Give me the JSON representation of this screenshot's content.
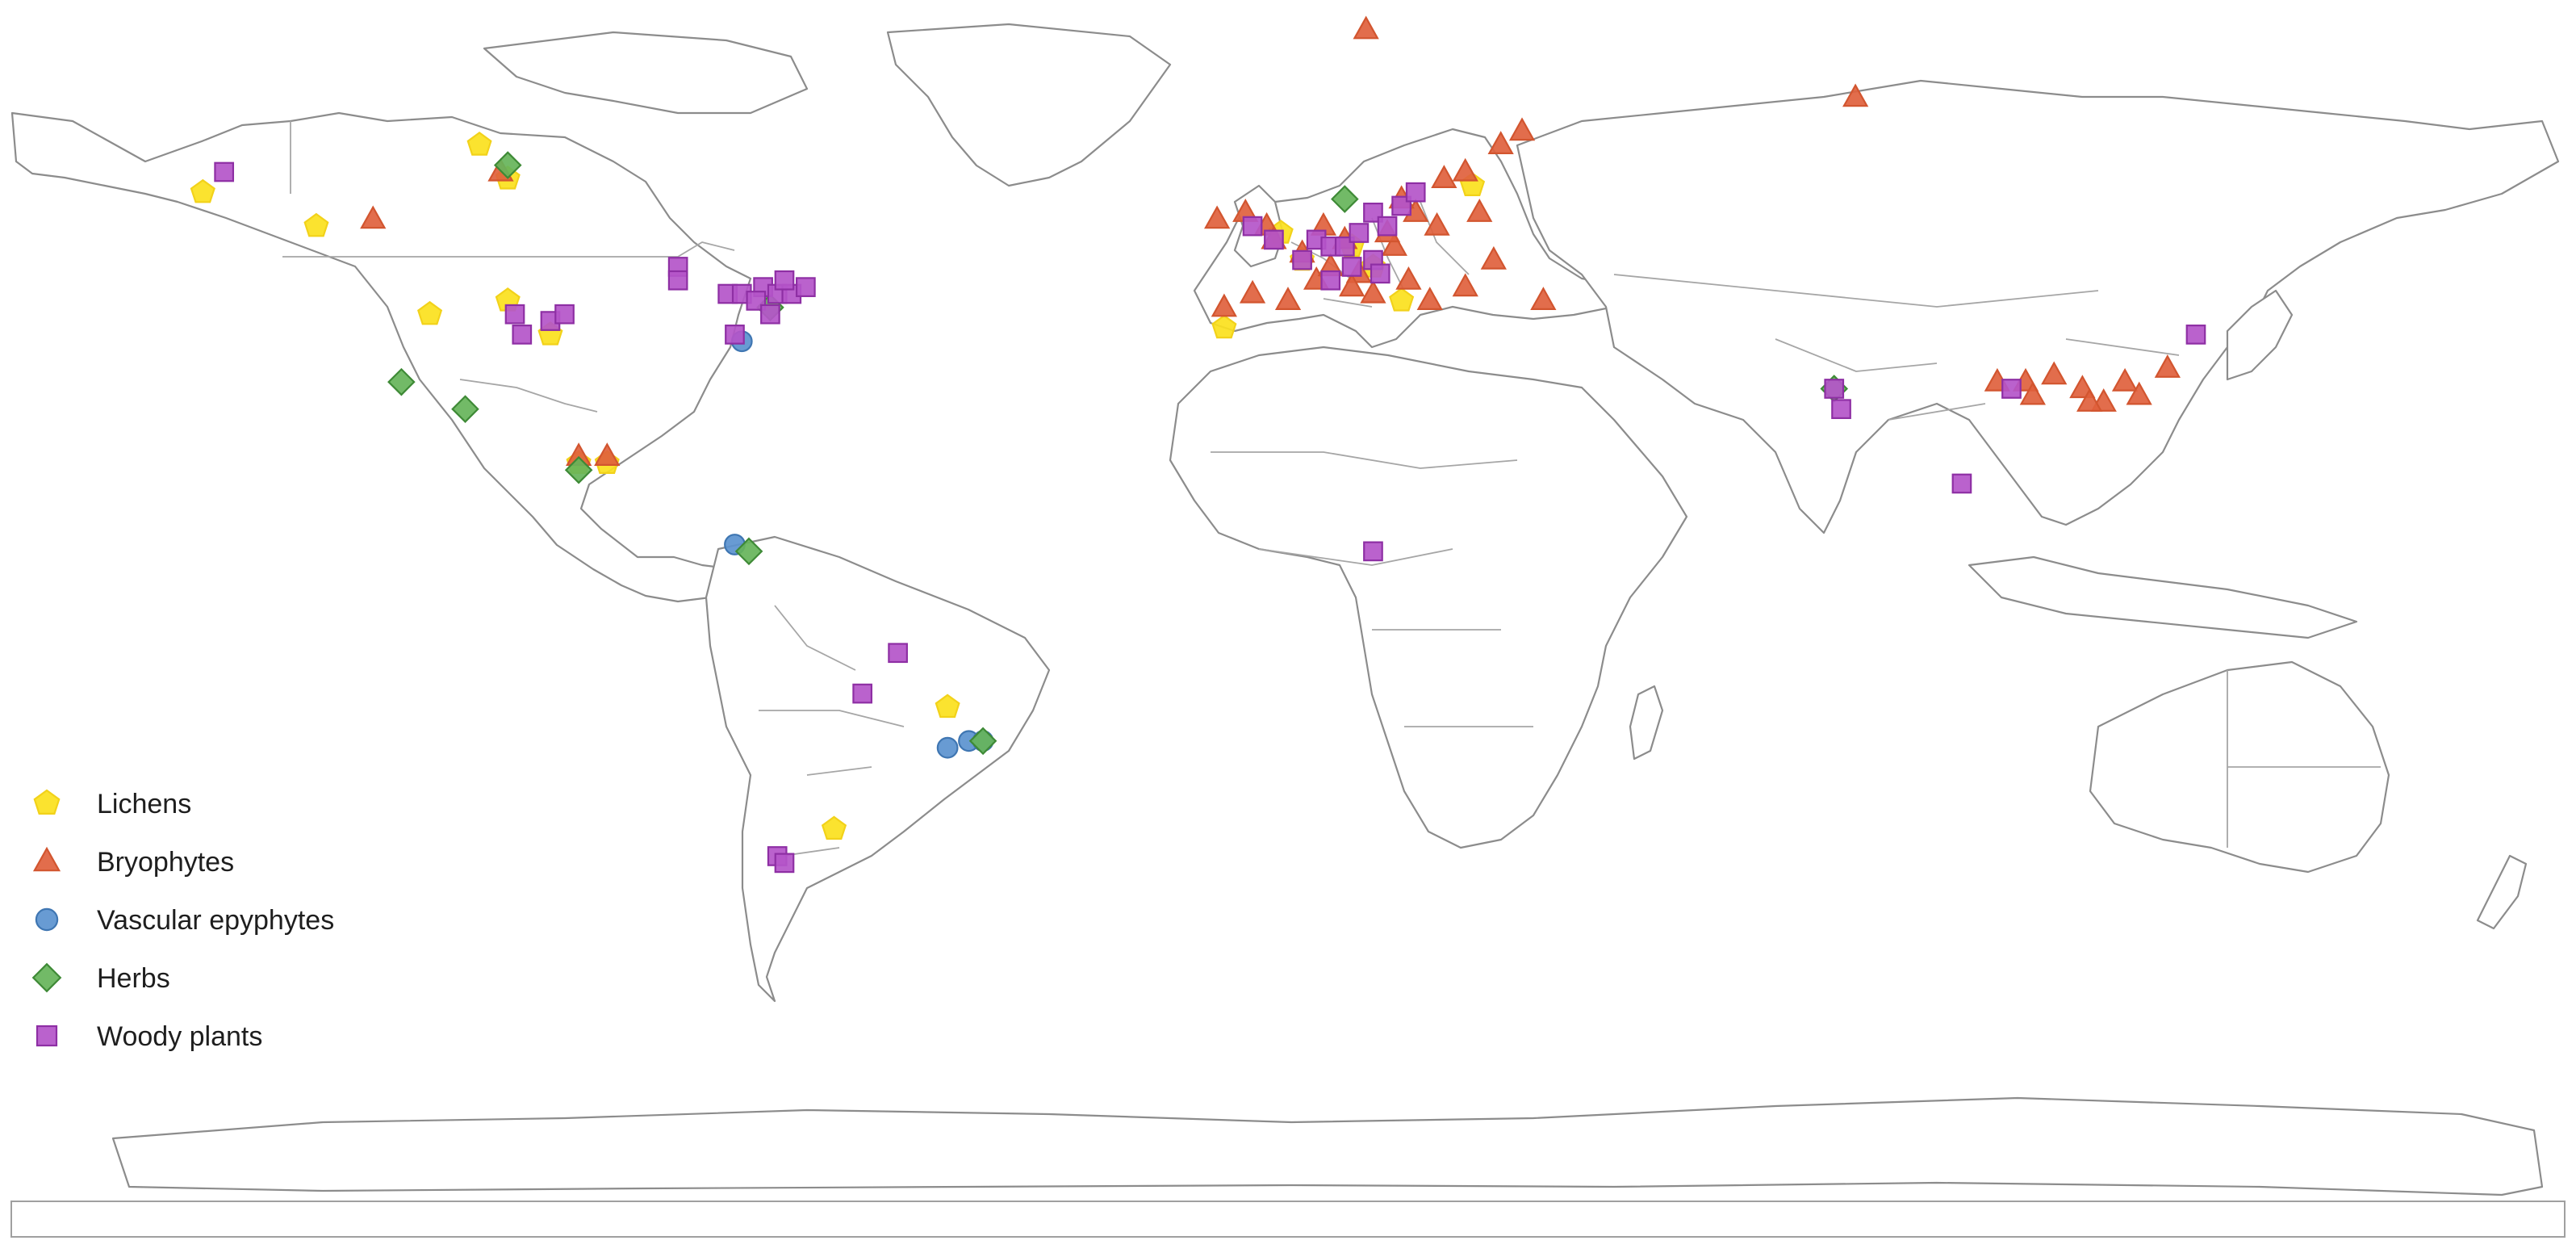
{
  "legend": {
    "entries": [
      {
        "key": "lichens",
        "label": "Lichens",
        "shape": "pentagon",
        "fill": "#fbe11d",
        "stroke": "#f2d21a"
      },
      {
        "key": "bryophytes",
        "label": "Bryophytes",
        "shape": "triangle",
        "fill": "#e0613d",
        "stroke": "#d2552f"
      },
      {
        "key": "vascular",
        "label": "Vascular epyphytes",
        "shape": "circle",
        "fill": "#5b93cf",
        "stroke": "#3f76b2"
      },
      {
        "key": "herbs",
        "label": "Herbs",
        "shape": "diamond",
        "fill": "#66b45a",
        "stroke": "#3e8a36"
      },
      {
        "key": "woody",
        "label": "Woody plants",
        "shape": "square",
        "fill": "#b455c9",
        "stroke": "#8e2fa4"
      }
    ]
  },
  "chart_data": {
    "type": "scatter",
    "map": "world",
    "x_unit": "longitude",
    "y_unit": "latitude",
    "xlim": [
      -180,
      180
    ],
    "ylim": [
      -90,
      84
    ],
    "series": [
      {
        "name": "Lichens",
        "points": [
          [
            -153,
            58
          ],
          [
            -114,
            65
          ],
          [
            -110,
            60
          ],
          [
            -137,
            53
          ],
          [
            -121,
            40
          ],
          [
            -110,
            42
          ],
          [
            -104,
            37
          ],
          [
            -100,
            18
          ],
          [
            -96,
            18
          ],
          [
            -48,
            -18
          ],
          [
            -64,
            -36
          ],
          [
            -9,
            38
          ],
          [
            -1,
            52
          ],
          [
            2,
            48
          ],
          [
            9,
            50
          ],
          [
            12,
            47
          ],
          [
            16,
            42
          ],
          [
            26,
            59
          ]
        ]
      },
      {
        "name": "Bryophytes",
        "points": [
          [
            11,
            82
          ],
          [
            80,
            72
          ],
          [
            -129,
            54
          ],
          [
            -111,
            61
          ],
          [
            -100,
            19
          ],
          [
            -96,
            19
          ],
          [
            -10,
            54
          ],
          [
            -6,
            55
          ],
          [
            -3,
            53
          ],
          [
            -2,
            51
          ],
          [
            2,
            49
          ],
          [
            0,
            42
          ],
          [
            -5,
            43
          ],
          [
            4,
            45
          ],
          [
            8,
            51
          ],
          [
            10,
            46
          ],
          [
            12,
            43
          ],
          [
            15,
            50
          ],
          [
            17,
            45
          ],
          [
            18,
            55
          ],
          [
            21,
            53
          ],
          [
            22,
            60
          ],
          [
            25,
            61
          ],
          [
            27,
            55
          ],
          [
            30,
            65
          ],
          [
            33,
            67
          ],
          [
            29,
            48
          ],
          [
            36,
            42
          ],
          [
            25,
            44
          ],
          [
            20,
            42
          ],
          [
            5,
            53
          ],
          [
            14,
            52
          ],
          [
            9,
            44
          ],
          [
            -9,
            41
          ],
          [
            16,
            57
          ],
          [
            6,
            47
          ],
          [
            100,
            30
          ],
          [
            104,
            30
          ],
          [
            108,
            31
          ],
          [
            105,
            28
          ],
          [
            112,
            29
          ],
          [
            118,
            30
          ],
          [
            115,
            27
          ],
          [
            120,
            28
          ],
          [
            124,
            32
          ],
          [
            113,
            27
          ]
        ]
      },
      {
        "name": "Vascular epyphytes",
        "points": [
          [
            -77,
            36
          ],
          [
            -78,
            6
          ],
          [
            -45,
            -23
          ],
          [
            -48,
            -24
          ],
          [
            -43,
            -23
          ]
        ]
      },
      {
        "name": "Herbs",
        "points": [
          [
            -110,
            62
          ],
          [
            -125,
            30
          ],
          [
            -116,
            26
          ],
          [
            -100,
            17
          ],
          [
            -73,
            41
          ],
          [
            -76,
            5
          ],
          [
            -43,
            -23
          ],
          [
            77,
            29
          ],
          [
            8,
            57
          ]
        ]
      },
      {
        "name": "Woody plants",
        "points": [
          [
            -150,
            61
          ],
          [
            -86,
            47
          ],
          [
            -86,
            45
          ],
          [
            -79,
            43
          ],
          [
            -77,
            43
          ],
          [
            -74,
            44
          ],
          [
            -72,
            43
          ],
          [
            -70,
            43
          ],
          [
            -68,
            44
          ],
          [
            -75,
            42
          ],
          [
            -71,
            45
          ],
          [
            -73,
            40
          ],
          [
            -109,
            40
          ],
          [
            -108,
            37
          ],
          [
            -104,
            39
          ],
          [
            -102,
            40
          ],
          [
            -78,
            37
          ],
          [
            -55,
            -10
          ],
          [
            -60,
            -16
          ],
          [
            -72,
            -40
          ],
          [
            -71,
            -41
          ],
          [
            -5,
            53
          ],
          [
            -2,
            51
          ],
          [
            2,
            48
          ],
          [
            4,
            51
          ],
          [
            6,
            50
          ],
          [
            8,
            50
          ],
          [
            10,
            52
          ],
          [
            12,
            55
          ],
          [
            14,
            53
          ],
          [
            16,
            56
          ],
          [
            18,
            58
          ],
          [
            9,
            47
          ],
          [
            12,
            48
          ],
          [
            6,
            45
          ],
          [
            13,
            46
          ],
          [
            12,
            5
          ],
          [
            77,
            29
          ],
          [
            78,
            26
          ],
          [
            128,
            37
          ],
          [
            102,
            29
          ],
          [
            95,
            15
          ]
        ]
      }
    ]
  }
}
